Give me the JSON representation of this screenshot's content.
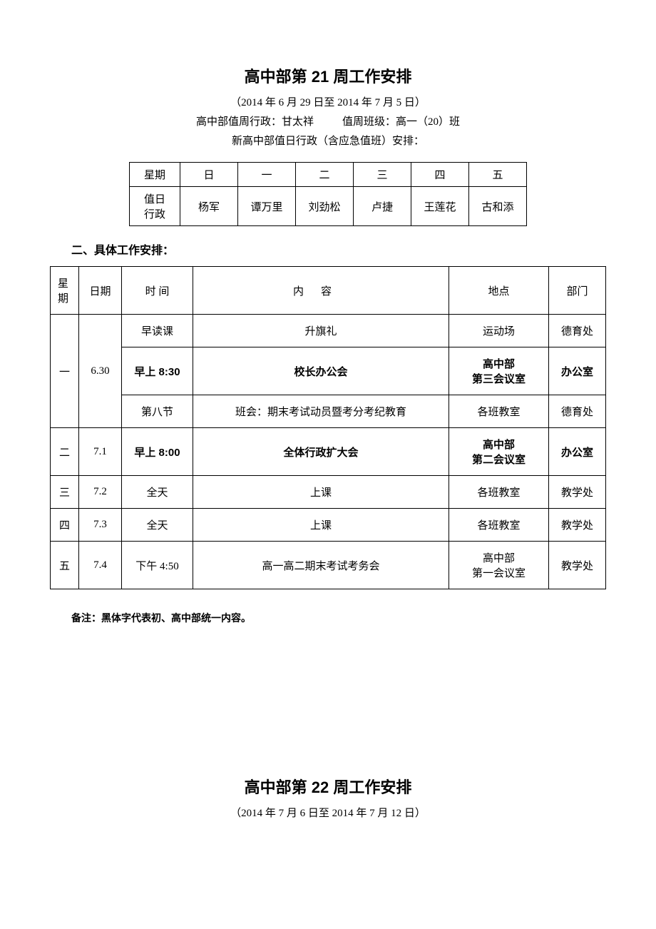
{
  "week21": {
    "title": "高中部第 21 周工作安排",
    "date_range": "（2014 年 6 月 29 日至 2014 年 7 月 5 日）",
    "duty_admin_label": "高中部值周行政：",
    "duty_admin_name": "甘太祥",
    "duty_class_label": "值周班级：",
    "duty_class_name": "高一（20）班",
    "new_duty_line": "新高中部值日行政（含应急值班）安排：",
    "duty_table": {
      "row1_label": "星期",
      "days": [
        "日",
        "一",
        "二",
        "三",
        "四",
        "五"
      ],
      "row2_label": "值日\n行政",
      "names": [
        "杨军",
        "谭万里",
        "刘劲松",
        "卢捷",
        "王莲花",
        "古和添"
      ]
    },
    "section2_heading": "二、具体工作安排：",
    "schedule": {
      "headers": {
        "weekday": "星期",
        "date": "日期",
        "time": "时 间",
        "content": "内容",
        "location": "地点",
        "dept": "部门"
      },
      "rows": [
        {
          "weekday": "一",
          "date": "6.30",
          "rowspan": 3,
          "time": "早读课",
          "content": "升旗礼",
          "location": "运动场",
          "dept": "德育处",
          "bold": false
        },
        {
          "time": "早上 8:30",
          "content": "校长办公会",
          "location": "高中部\n第三会议室",
          "dept": "办公室",
          "bold": true
        },
        {
          "time": "第八节",
          "content": "班会：期末考试动员暨考分考纪教育",
          "location": "各班教室",
          "dept": "德育处",
          "bold": false
        },
        {
          "weekday": "二",
          "date": "7.1",
          "rowspan": 1,
          "time": "早上 8:00",
          "content": "全体行政扩大会",
          "location": "高中部\n第二会议室",
          "dept": "办公室",
          "bold": true
        },
        {
          "weekday": "三",
          "date": "7.2",
          "rowspan": 1,
          "time": "全天",
          "content": "上课",
          "location": "各班教室",
          "dept": "教学处",
          "bold": false
        },
        {
          "weekday": "四",
          "date": "7.3",
          "rowspan": 1,
          "time": "全天",
          "content": "上课",
          "location": "各班教室",
          "dept": "教学处",
          "bold": false
        },
        {
          "weekday": "五",
          "date": "7.4",
          "rowspan": 1,
          "time": "下午 4:50",
          "content": "高一高二期末考试考务会",
          "location": "高中部\n第一会议室",
          "dept": "教学处",
          "bold": false
        }
      ]
    },
    "note": "备注：黑体字代表初、高中部统一内容。"
  },
  "week22": {
    "title": "高中部第 22 周工作安排",
    "date_range": "（2014 年 7 月 6 日至 2014 年 7 月 12 日）"
  },
  "col_widths": {
    "schedule": [
      "40px",
      "60px",
      "100px",
      "auto",
      "130px",
      "80px"
    ]
  }
}
